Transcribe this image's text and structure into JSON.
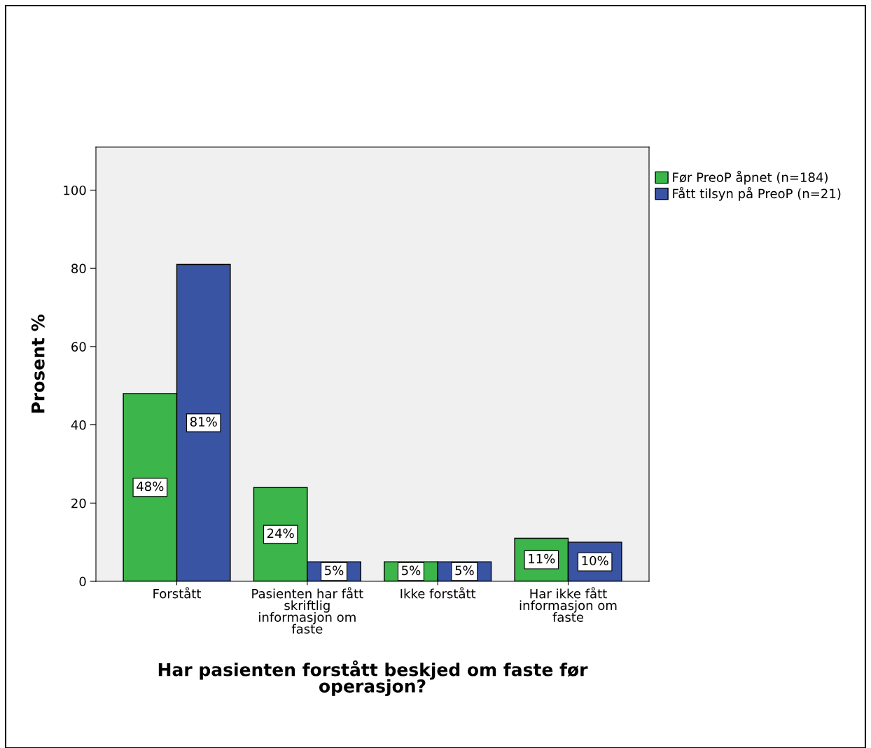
{
  "chart_data": {
    "type": "bar",
    "categories": [
      "Forstått",
      "Pasienten har fått\nskriftlig\ninformasjon om\nfaste",
      "Ikke forstått",
      "Har ikke fått\ninformasjon om\nfaste"
    ],
    "series": [
      {
        "name": "Før PreoP åpnet (n=184)",
        "color": "#3cb54a",
        "values": [
          48,
          24,
          5,
          11
        ],
        "value_labels": [
          "48%",
          "24%",
          "5%",
          "11%"
        ]
      },
      {
        "name": "Fått tilsyn på PreoP (n=21)",
        "color": "#3a54a4",
        "values": [
          81,
          5,
          5,
          10
        ],
        "value_labels": [
          "81%",
          "5%",
          "5%",
          "10%"
        ]
      }
    ],
    "xlabel": "Har pasienten forstått beskjed om faste før\noperasjon?",
    "ylabel": "Prosent %",
    "ylim": [
      0,
      111
    ],
    "yticks": [
      0,
      20,
      40,
      60,
      80,
      100
    ],
    "grid": false,
    "legend": "top right"
  }
}
